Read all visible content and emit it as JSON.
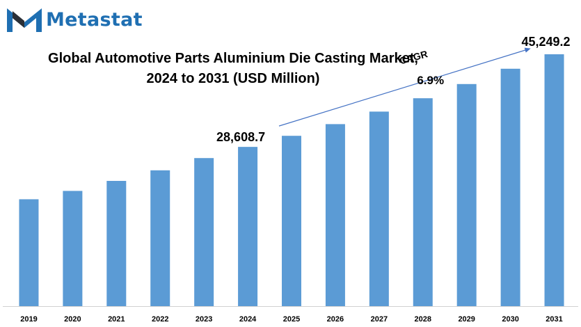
{
  "brand": {
    "name": "Metastat",
    "color": "#1f6fb2"
  },
  "chart_data": {
    "type": "bar",
    "title_line1": "Global Automotive Parts Aluminium Die Casting Market,",
    "title_line2": "2024 to 2031 (USD Million)",
    "xlabel": "",
    "ylabel": "",
    "categories": [
      "2019",
      "2020",
      "2021",
      "2022",
      "2023",
      "2024",
      "2025",
      "2026",
      "2027",
      "2028",
      "2029",
      "2030",
      "2031"
    ],
    "values": [
      19200,
      20700,
      22500,
      24400,
      26600,
      28608.7,
      30600,
      32700,
      34950,
      37350,
      39900,
      42650,
      45249.2
    ],
    "ylim": [
      0,
      50000
    ],
    "bar_color": "#5b9bd5",
    "grid": false,
    "annotations": {
      "start_label": "28,608.7",
      "end_label": "45,249.2",
      "cagr_label": "CAGR",
      "cagr_value": "6.9%"
    }
  }
}
